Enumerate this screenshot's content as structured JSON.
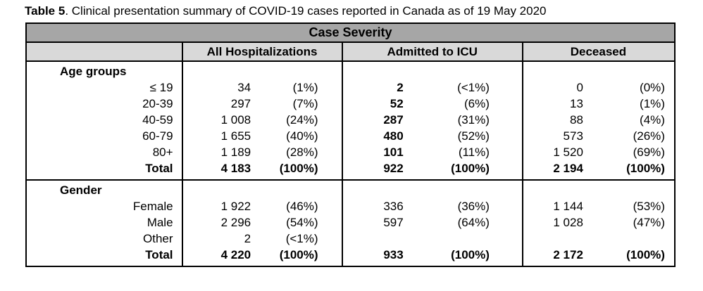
{
  "caption": {
    "label": "Table 5",
    "text": ". Clinical presentation summary of COVID-19 cases reported in Canada as of 19 May 2020"
  },
  "table": {
    "main_header": "Case Severity",
    "columns": [
      "All Hospitalizations",
      "Admitted to ICU",
      "Deceased"
    ],
    "sections": [
      {
        "label": "Age groups",
        "rows": [
          {
            "label": "≤ 19",
            "total": false,
            "cells": [
              {
                "n": "34",
                "p": "(1%)"
              },
              {
                "n": "2",
                "p": "(<1%)",
                "bn": true
              },
              {
                "n": "0",
                "p": "(0%)"
              }
            ]
          },
          {
            "label": "20-39",
            "total": false,
            "cells": [
              {
                "n": "297",
                "p": "(7%)"
              },
              {
                "n": "52",
                "p": "(6%)",
                "bn": true
              },
              {
                "n": "13",
                "p": "(1%)"
              }
            ]
          },
          {
            "label": "40-59",
            "total": false,
            "cells": [
              {
                "n": "1 008",
                "p": "(24%)"
              },
              {
                "n": "287",
                "p": "(31%)",
                "bn": true
              },
              {
                "n": "88",
                "p": "(4%)"
              }
            ]
          },
          {
            "label": "60-79",
            "total": false,
            "cells": [
              {
                "n": "1 655",
                "p": "(40%)"
              },
              {
                "n": "480",
                "p": "(52%)",
                "bn": true
              },
              {
                "n": "573",
                "p": "(26%)"
              }
            ]
          },
          {
            "label": "80+",
            "total": false,
            "cells": [
              {
                "n": "1 189",
                "p": "(28%)"
              },
              {
                "n": "101",
                "p": "(11%)",
                "bn": true
              },
              {
                "n": "1 520",
                "p": "(69%)"
              }
            ]
          },
          {
            "label": "Total",
            "total": true,
            "cells": [
              {
                "n": "4 183",
                "p": "(100%)"
              },
              {
                "n": "922",
                "p": "(100%)"
              },
              {
                "n": "2 194",
                "p": "(100%)"
              }
            ]
          }
        ]
      },
      {
        "label": "Gender",
        "rows": [
          {
            "label": "Female",
            "total": false,
            "cells": [
              {
                "n": "1 922",
                "p": "(46%)"
              },
              {
                "n": "336",
                "p": "(36%)"
              },
              {
                "n": "1 144",
                "p": "(53%)"
              }
            ]
          },
          {
            "label": "Male",
            "total": false,
            "cells": [
              {
                "n": "2 296",
                "p": "(54%)"
              },
              {
                "n": "597",
                "p": "(64%)"
              },
              {
                "n": "1 028",
                "p": "(47%)"
              }
            ]
          },
          {
            "label": "Other",
            "total": false,
            "cells": [
              {
                "n": "2",
                "p": "(<1%)"
              },
              {
                "n": "",
                "p": ""
              },
              {
                "n": "",
                "p": ""
              }
            ]
          },
          {
            "label": "Total",
            "total": true,
            "cells": [
              {
                "n": "4 220",
                "p": "(100%)"
              },
              {
                "n": "933",
                "p": "(100%)"
              },
              {
                "n": "2 172",
                "p": "(100%)"
              }
            ]
          }
        ]
      }
    ]
  },
  "colors": {
    "main_header_bg": "#a6a6a6",
    "sub_header_bg": "#d9d9d9",
    "border": "#000000"
  }
}
